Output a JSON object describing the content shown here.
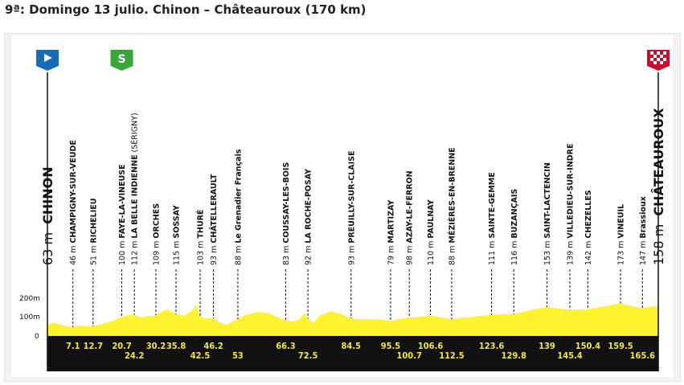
{
  "title": "9ª: Domingo 13 julio. Chinon – Châteauroux (170 km)",
  "colors": {
    "profile": "#fff22e",
    "road": "#111111",
    "km_text": "#f4e83c",
    "start_flag": "#1a6bb5",
    "sprint_flag": "#3aa53c",
    "finish_flag": "#c8102e"
  },
  "icons": {
    "start": "start-flag-icon",
    "sprint": "sprint-flag-icon",
    "finish": "finish-flag-icon"
  },
  "sprint_letter": "S",
  "chart_data": {
    "type": "area",
    "title": "9ª: Domingo 13 julio. Chinon – Châteauroux (170 km)",
    "xlabel": "",
    "ylabel": "",
    "xlim": [
      0,
      170
    ],
    "ylim": [
      0,
      200
    ],
    "y_ticks": [
      {
        "value": 0,
        "label": "0"
      },
      {
        "value": 100,
        "label": "100m"
      },
      {
        "value": 200,
        "label": "200m"
      }
    ],
    "start": {
      "km": 0,
      "name": "CHINON",
      "elevation": "63 m"
    },
    "finish": {
      "km": 170,
      "name": "CHÂTEAUROUX",
      "elevation": "158 m"
    },
    "sprint_km": 20.7,
    "points": [
      {
        "km": "7.1",
        "name": "CHAMPIGNY-SUR-VEUDE",
        "elevation": "46 m",
        "row": "top"
      },
      {
        "km": "12.7",
        "name": "RICHELIEU",
        "elevation": "51 m",
        "row": "top"
      },
      {
        "km": "20.7",
        "name": "FAYE-LA-VINEUSE",
        "elevation": "100 m",
        "row": "top"
      },
      {
        "km": "24.2",
        "name": "LA BELLE INDIENNE",
        "suffix": "(SÉRIGNY)",
        "elevation": "112 m",
        "row": "bottom"
      },
      {
        "km": "30.2",
        "name": "ORCHES",
        "elevation": "109 m",
        "row": "top"
      },
      {
        "km": "35.8",
        "name": "SOSSAY",
        "elevation": "115 m",
        "row": "top"
      },
      {
        "km": "42.5",
        "name": "THURÉ",
        "elevation": "103 m",
        "row": "bottom"
      },
      {
        "km": "46.2",
        "name": "CHÂTELLERAULT",
        "elevation": "93 m",
        "row": "top"
      },
      {
        "km": "53",
        "name": "Le Grenadier Français",
        "elevation": "88 m",
        "row": "bottom"
      },
      {
        "km": "66.3",
        "name": "COUSSAY-LES-BOIS",
        "elevation": "83 m",
        "row": "top"
      },
      {
        "km": "72.5",
        "name": "LA ROCHE-POSAY",
        "elevation": "92 m",
        "row": "bottom"
      },
      {
        "km": "84.5",
        "name": "PREUILLY-SUR-CLAISE",
        "elevation": "93 m",
        "row": "top"
      },
      {
        "km": "95.5",
        "name": "MARTIZAY",
        "elevation": "79 m",
        "row": "top"
      },
      {
        "km": "100.7",
        "name": "AZAY-LE-FERRON",
        "elevation": "98 m",
        "row": "bottom"
      },
      {
        "km": "106.6",
        "name": "PAULNAY",
        "elevation": "110 m",
        "row": "top"
      },
      {
        "km": "112.5",
        "name": "MÉZIÈRES-EN-BRENNE",
        "elevation": "88 m",
        "row": "bottom"
      },
      {
        "km": "123.6",
        "name": "SAINTE-GEMME",
        "elevation": "111 m",
        "row": "top"
      },
      {
        "km": "129.8",
        "name": "BUZANÇAIS",
        "elevation": "116 m",
        "row": "bottom"
      },
      {
        "km": "139",
        "name": "SAINT-LACTENCIN",
        "elevation": "153 m",
        "row": "top"
      },
      {
        "km": "145.4",
        "name": "VILLEDIEU-SUR-INDRE",
        "elevation": "139 m",
        "row": "bottom"
      },
      {
        "km": "150.4",
        "name": "CHEZELLES",
        "elevation": "142 m",
        "row": "top"
      },
      {
        "km": "159.5",
        "name": "VINEUIL",
        "elevation": "173 m",
        "row": "top"
      },
      {
        "km": "165.6",
        "name": "Brassioux",
        "elevation": "147 m",
        "row": "bottom"
      }
    ],
    "profile": [
      [
        0,
        63
      ],
      [
        2,
        70
      ],
      [
        4,
        58
      ],
      [
        6,
        50
      ],
      [
        7.1,
        46
      ],
      [
        9,
        55
      ],
      [
        11,
        52
      ],
      [
        12.7,
        51
      ],
      [
        15,
        62
      ],
      [
        18,
        80
      ],
      [
        20.7,
        100
      ],
      [
        22,
        108
      ],
      [
        24.2,
        112
      ],
      [
        26,
        98
      ],
      [
        28,
        105
      ],
      [
        30.2,
        109
      ],
      [
        32,
        130
      ],
      [
        33.5,
        142
      ],
      [
        35.8,
        115
      ],
      [
        38,
        108
      ],
      [
        40,
        128
      ],
      [
        41.5,
        165
      ],
      [
        42.5,
        103
      ],
      [
        44,
        92
      ],
      [
        46.2,
        93
      ],
      [
        48,
        70
      ],
      [
        50,
        60
      ],
      [
        53,
        88
      ],
      [
        55,
        110
      ],
      [
        57,
        120
      ],
      [
        59,
        128
      ],
      [
        62,
        118
      ],
      [
        64,
        100
      ],
      [
        66.3,
        83
      ],
      [
        68,
        78
      ],
      [
        70,
        85
      ],
      [
        71.5,
        120
      ],
      [
        72.5,
        92
      ],
      [
        74,
        70
      ],
      [
        76,
        110
      ],
      [
        79,
        130
      ],
      [
        82,
        115
      ],
      [
        84.5,
        93
      ],
      [
        87,
        88
      ],
      [
        90,
        90
      ],
      [
        93,
        86
      ],
      [
        95.5,
        79
      ],
      [
        98,
        90
      ],
      [
        100.7,
        98
      ],
      [
        103,
        100
      ],
      [
        106.6,
        110
      ],
      [
        109,
        100
      ],
      [
        112.5,
        88
      ],
      [
        115,
        96
      ],
      [
        118,
        100
      ],
      [
        121,
        108
      ],
      [
        123.6,
        111
      ],
      [
        126,
        114
      ],
      [
        129.8,
        116
      ],
      [
        132,
        125
      ],
      [
        135,
        140
      ],
      [
        139,
        153
      ],
      [
        142,
        145
      ],
      [
        145.4,
        139
      ],
      [
        148,
        140
      ],
      [
        150.4,
        142
      ],
      [
        153,
        150
      ],
      [
        156,
        160
      ],
      [
        159.5,
        173
      ],
      [
        162,
        160
      ],
      [
        165.6,
        147
      ],
      [
        168,
        155
      ],
      [
        170,
        158
      ]
    ]
  }
}
